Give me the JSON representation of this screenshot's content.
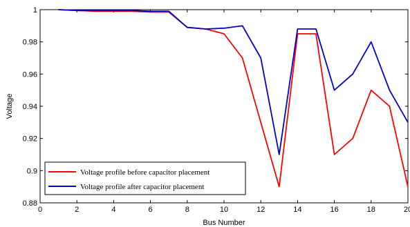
{
  "chart_data": {
    "type": "line",
    "title": "",
    "xlabel": "Bus Number",
    "ylabel": "Voltage",
    "xlim": [
      0,
      20
    ],
    "ylim": [
      0.88,
      1.0
    ],
    "xticks": [
      0,
      2,
      4,
      6,
      8,
      10,
      12,
      14,
      16,
      18,
      20
    ],
    "xtick_labels": [
      "0",
      "2",
      "4",
      "6",
      "8",
      "10",
      "12",
      "14",
      "16",
      "18",
      "20"
    ],
    "yticks": [
      0.88,
      0.9,
      0.92,
      0.94,
      0.96,
      0.98,
      1.0
    ],
    "ytick_labels": [
      "0.88",
      "0.9",
      "0.92",
      "0.94",
      "0.96",
      "0.98",
      "1"
    ],
    "grid": false,
    "legend_position": "bottom-left",
    "series": [
      {
        "name": "Voltage profile before capacitor placement",
        "color": "#ff0000",
        "x": [
          1,
          2,
          3,
          4,
          5,
          6,
          7,
          8,
          9,
          10,
          11,
          12,
          13,
          14,
          15,
          16,
          17,
          18,
          19,
          20
        ],
        "values": [
          1.0,
          0.9995,
          0.999,
          0.999,
          0.999,
          0.9985,
          0.9985,
          0.989,
          0.988,
          0.985,
          0.97,
          0.93,
          0.89,
          0.985,
          0.985,
          0.91,
          0.92,
          0.95,
          0.94,
          0.89
        ]
      },
      {
        "name": "Voltage profile after capacitor placement",
        "color": "#0000cc",
        "x": [
          1,
          2,
          3,
          4,
          5,
          6,
          7,
          8,
          9,
          10,
          11,
          12,
          13,
          14,
          15,
          16,
          17,
          18,
          19,
          20
        ],
        "values": [
          1.0,
          0.9995,
          0.9995,
          0.9995,
          0.9995,
          0.999,
          0.999,
          0.989,
          0.988,
          0.9885,
          0.99,
          0.97,
          0.91,
          0.988,
          0.988,
          0.95,
          0.96,
          0.98,
          0.95,
          0.93
        ]
      }
    ]
  }
}
